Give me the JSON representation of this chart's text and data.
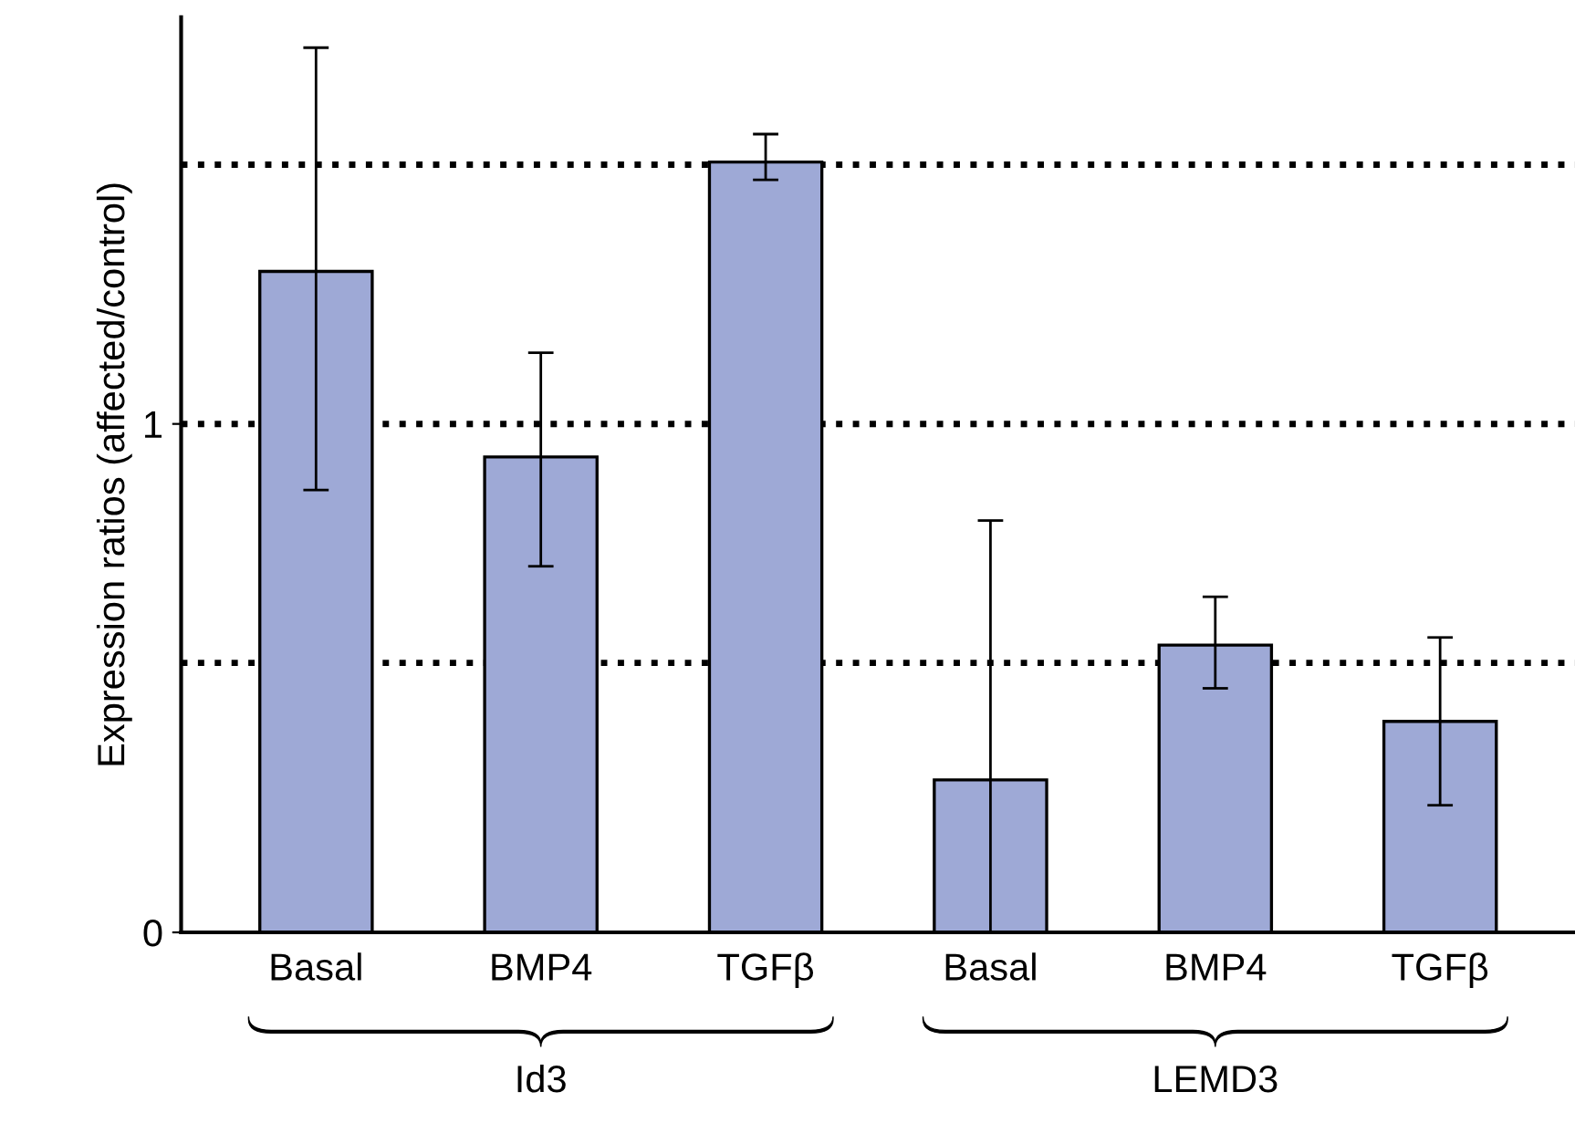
{
  "chart_data": {
    "type": "bar",
    "ylabel": "Expression ratios (affected/control)",
    "categories": [
      "Basal",
      "BMP4",
      "TGFβ",
      "Basal",
      "BMP4",
      "TGFβ"
    ],
    "values": [
      1.3,
      0.935,
      1.515,
      0.3,
      0.565,
      0.415
    ],
    "errors": [
      [
        0.87,
        1.74
      ],
      [
        0.72,
        1.14
      ],
      [
        1.48,
        1.57
      ],
      [
        0,
        0.81
      ],
      [
        0.48,
        0.66
      ],
      [
        0.25,
        0.58
      ]
    ],
    "color": "#9ea9d6",
    "ylim": [
      0,
      1.8
    ],
    "yticks": [
      0,
      1
    ],
    "ref_lines": [
      {
        "axis": "y",
        "value": 1.51,
        "color": "#000000",
        "line_style": "dotted"
      },
      {
        "axis": "y",
        "value": 1,
        "color": "#000000",
        "line_style": "dotted"
      },
      {
        "axis": "y",
        "value": 0.53,
        "color": "#000000",
        "line_style": "dotted"
      }
    ],
    "annotations": [
      "Id3",
      "LEMD3"
    ],
    "grid": false,
    "legend": false
  }
}
